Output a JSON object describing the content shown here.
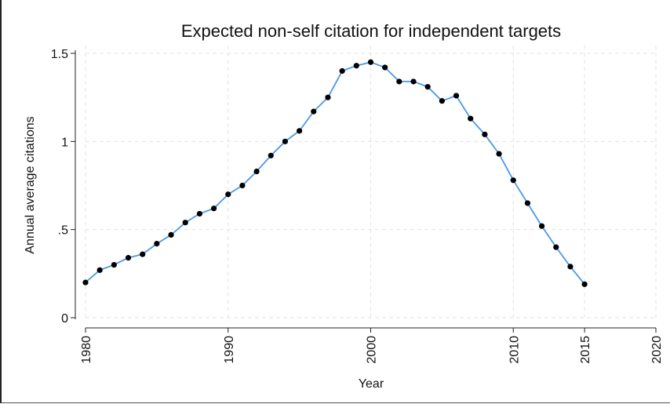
{
  "chart_data": {
    "type": "line",
    "title": "Expected non-self citation for independent targets",
    "xlabel": "Year",
    "ylabel": "Annual average citations",
    "xlim": [
      1980,
      2020
    ],
    "ylim": [
      0,
      1.5
    ],
    "x_ticks": [
      "1980",
      "1990",
      "2000",
      "2010",
      "2015",
      "2020"
    ],
    "y_ticks": [
      "0",
      ".5",
      "1",
      "1.5"
    ],
    "grid": true,
    "line_color": "#4a98e8",
    "marker_color": "#000000",
    "series": [
      {
        "x": [
          1980,
          1981,
          1982,
          1983,
          1984,
          1985,
          1986,
          1987,
          1988,
          1989,
          1990,
          1991,
          1992,
          1993,
          1994,
          1995,
          1996,
          1997,
          1998,
          1999,
          2000,
          2001,
          2002,
          2003,
          2004,
          2005,
          2006,
          2007,
          2008,
          2009,
          2010,
          2011,
          2012,
          2013,
          2014,
          2015
        ],
        "y": [
          0.2,
          0.27,
          0.3,
          0.34,
          0.36,
          0.42,
          0.47,
          0.54,
          0.59,
          0.62,
          0.7,
          0.75,
          0.83,
          0.92,
          1.0,
          1.06,
          1.17,
          1.25,
          1.4,
          1.43,
          1.45,
          1.42,
          1.34,
          1.34,
          1.31,
          1.23,
          1.26,
          1.13,
          1.04,
          0.93,
          0.78,
          0.65,
          0.52,
          0.4,
          0.29,
          0.19
        ]
      }
    ]
  }
}
